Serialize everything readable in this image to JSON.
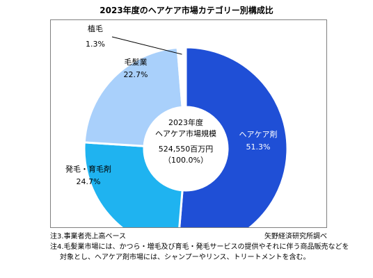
{
  "title": "2023年度のヘアケア市場カテゴリー別構成比",
  "source": "矢野経済研究所調べ",
  "notes": [
    "注3.事業者売上高ベース",
    "注4.毛髪業市場には、かつら・増毛及び育毛・発毛サービスの提供やそれに伴う商品販売などを",
    "対象とし、ヘアケア剤市場には、シャンプーやリンス、トリートメントを含む。"
  ],
  "chart_data": {
    "type": "pie",
    "title": "2023年度のヘアケア市場カテゴリー別構成比",
    "center_label": [
      "2023年度",
      "ヘアケア市場規模",
      "524,550百万円",
      "（100.0%）"
    ],
    "slices": [
      {
        "label": "ヘアケア剤",
        "value": 51.3,
        "value_label": "51.3%",
        "color": "#1f4fd6"
      },
      {
        "label": "発毛・育毛剤",
        "value": 24.7,
        "value_label": "24.7%",
        "color": "#1fb3f0"
      },
      {
        "label": "毛髪業",
        "value": 22.7,
        "value_label": "22.7%",
        "color": "#a9d0fb"
      },
      {
        "label": "植毛",
        "value": 1.3,
        "value_label": "1.3%",
        "color": "#ffffff"
      }
    ]
  }
}
